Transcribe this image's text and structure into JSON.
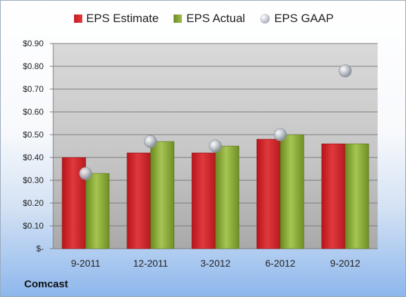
{
  "company": "Comcast",
  "legend": {
    "estimate": "EPS Estimate",
    "actual": "EPS Actual",
    "gaap": "EPS GAAP"
  },
  "colors": {
    "estimate": "#d3242a",
    "actual": "#8aab3a",
    "gaap": "#b9bec6"
  },
  "chart_data": {
    "type": "bar",
    "categories": [
      "9-2011",
      "12-2011",
      "3-2012",
      "6-2012",
      "9-2012"
    ],
    "series": [
      {
        "name": "EPS Estimate",
        "type": "bar",
        "values": [
          0.4,
          0.42,
          0.42,
          0.48,
          0.46
        ]
      },
      {
        "name": "EPS Actual",
        "type": "bar",
        "values": [
          0.33,
          0.47,
          0.45,
          0.5,
          0.46
        ]
      },
      {
        "name": "EPS GAAP",
        "type": "scatter",
        "values": [
          0.33,
          0.47,
          0.45,
          0.5,
          0.78
        ]
      }
    ],
    "ylim": [
      0,
      0.9
    ],
    "yticks": [
      0,
      0.1,
      0.2,
      0.3,
      0.4,
      0.5,
      0.6,
      0.7,
      0.8,
      0.9
    ],
    "ytick_labels": [
      "$-",
      "$0.10",
      "$0.20",
      "$0.30",
      "$0.40",
      "$0.50",
      "$0.60",
      "$0.70",
      "$0.80",
      "$0.90"
    ],
    "grid": true,
    "legend_position": "top"
  }
}
